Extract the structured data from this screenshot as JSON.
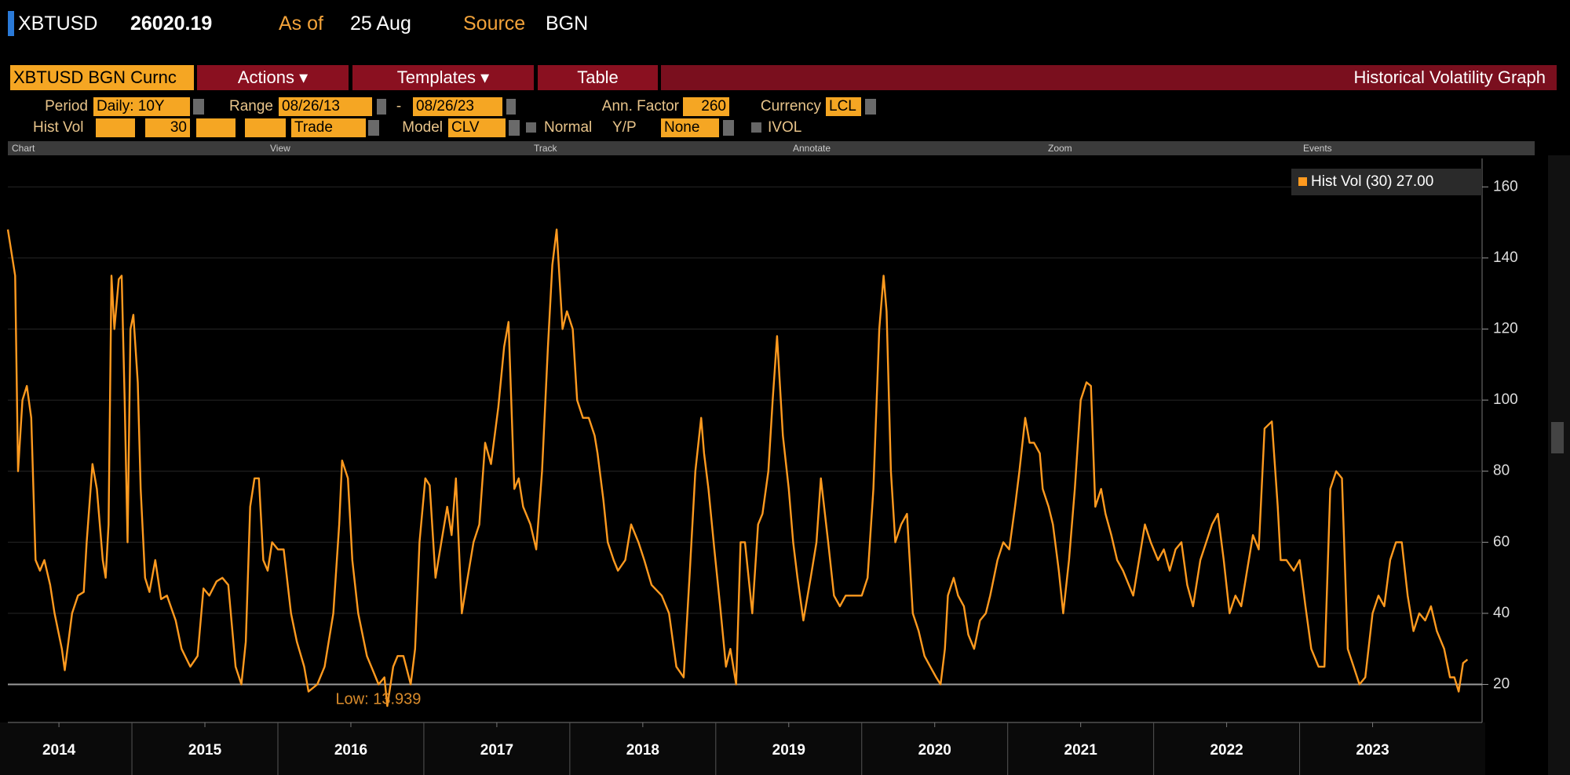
{
  "header": {
    "ticker": "XBTUSD",
    "price": "26020.19",
    "as_of_label": "As of",
    "as_of": "25 Aug",
    "source_label": "Source",
    "source": "BGN"
  },
  "menu": {
    "security": "XBTUSD BGN Curnc",
    "items": [
      "Actions ▾",
      "Templates ▾",
      "Table"
    ],
    "title": "Historical Volatility Graph"
  },
  "params": {
    "period_label": "Period",
    "period": "Daily: 10Y",
    "range_label": "Range",
    "range_start": "08/26/13",
    "range_sep": "-",
    "range_end": "08/26/23",
    "ann_factor_label": "Ann. Factor",
    "ann_factor": "260",
    "currency_label": "Currency",
    "currency": "LCL",
    "hist_vol_label": "Hist Vol",
    "hist_vol_window": "30",
    "price_type": "Trade",
    "model_label": "Model",
    "model": "CLV",
    "normal_label": "Normal",
    "yp_label": "Y/P",
    "yp": "None",
    "ivol_label": "IVOL"
  },
  "toolbar": [
    "Chart",
    "View",
    "Track",
    "Annotate",
    "Zoom",
    "Events"
  ],
  "chart_data": {
    "type": "line",
    "x": [
      2013.65,
      2013.7,
      2013.72,
      2013.75,
      2013.78,
      2013.81,
      2013.84,
      2013.87,
      2013.9,
      2013.94,
      2013.97,
      2014.02,
      2014.04,
      2014.09,
      2014.13,
      2014.17,
      2014.19,
      2014.23,
      2014.26,
      2014.3,
      2014.32,
      2014.34,
      2014.36,
      2014.38,
      2014.41,
      2014.43,
      2014.45,
      2014.47,
      2014.49,
      2014.51,
      2014.54,
      2014.56,
      2014.59,
      2014.62,
      2014.66,
      2014.7,
      2014.74,
      2014.8,
      2014.84,
      2014.9,
      2014.95,
      2014.99,
      2015.03,
      2015.08,
      2015.12,
      2015.16,
      2015.21,
      2015.25,
      2015.28,
      2015.31,
      2015.34,
      2015.37,
      2015.4,
      2015.43,
      2015.46,
      2015.5,
      2015.54,
      2015.59,
      2015.63,
      2015.68,
      2015.71,
      2015.77,
      2015.82,
      2015.88,
      2015.92,
      2015.94,
      2015.98,
      2016.01,
      2016.05,
      2016.11,
      2016.15,
      2016.19,
      2016.23,
      2016.25,
      2016.29,
      2016.32,
      2016.36,
      2016.41,
      2016.44,
      2016.47,
      2016.51,
      2016.54,
      2016.58,
      2016.62,
      2016.66,
      2016.69,
      2016.72,
      2016.76,
      2016.8,
      2016.84,
      2016.88,
      2016.92,
      2016.96,
      2017.01,
      2017.05,
      2017.08,
      2017.12,
      2017.15,
      2017.18,
      2017.23,
      2017.27,
      2017.31,
      2017.35,
      2017.38,
      2017.41,
      2017.45,
      2017.48,
      2017.52,
      2017.55,
      2017.59,
      2017.63,
      2017.67,
      2017.69,
      2017.73,
      2017.76,
      2017.8,
      2017.83,
      2017.88,
      2017.92,
      2017.97,
      2018.01,
      2018.06,
      2018.13,
      2018.18,
      2018.23,
      2018.28,
      2018.32,
      2018.36,
      2018.4,
      2018.42,
      2018.45,
      2018.49,
      2018.53,
      2018.57,
      2018.6,
      2018.64,
      2018.67,
      2018.7,
      2018.75,
      2018.79,
      2018.82,
      2018.86,
      2018.89,
      2018.92,
      2018.96,
      2019.0,
      2019.03,
      2019.06,
      2019.1,
      2019.15,
      2019.19,
      2019.22,
      2019.27,
      2019.31,
      2019.35,
      2019.39,
      2019.44,
      2019.5,
      2019.54,
      2019.58,
      2019.62,
      2019.65,
      2019.67,
      2019.7,
      2019.73,
      2019.77,
      2019.81,
      2019.85,
      2019.89,
      2019.93,
      2019.97,
      2020.01,
      2020.04,
      2020.07,
      2020.09,
      2020.13,
      2020.16,
      2020.2,
      2020.23,
      2020.27,
      2020.31,
      2020.35,
      2020.38,
      2020.43,
      2020.47,
      2020.51,
      2020.55,
      2020.58,
      2020.62,
      2020.65,
      2020.68,
      2020.72,
      2020.74,
      2020.78,
      2020.81,
      2020.85,
      2020.88,
      2020.92,
      2020.96,
      2021.0,
      2021.04,
      2021.07,
      2021.1,
      2021.14,
      2021.17,
      2021.21,
      2021.25,
      2021.29,
      2021.33,
      2021.36,
      2021.4,
      2021.44,
      2021.48,
      2021.53,
      2021.57,
      2021.61,
      2021.65,
      2021.69,
      2021.73,
      2021.77,
      2021.82,
      2021.86,
      2021.9,
      2021.94,
      2021.98,
      2022.02,
      2022.06,
      2022.1,
      2022.14,
      2022.18,
      2022.22,
      2022.26,
      2022.31,
      2022.35,
      2022.37,
      2022.41,
      2022.46,
      2022.5,
      2022.54,
      2022.58,
      2022.63,
      2022.67,
      2022.71,
      2022.75,
      2022.79,
      2022.83,
      2022.87,
      2022.91,
      2022.95,
      2023.0,
      2023.04,
      2023.08,
      2023.12,
      2023.16,
      2023.2,
      2023.24,
      2023.28,
      2023.32,
      2023.36,
      2023.4,
      2023.44,
      2023.49,
      2023.53,
      2023.56,
      2023.59,
      2023.62,
      2023.65
    ],
    "series": [
      {
        "name": "Hist Vol (30) 27.00",
        "color": "#ff9a1f",
        "values": [
          148,
          135,
          80,
          100,
          104,
          95,
          55,
          52,
          55,
          48,
          40,
          30,
          24,
          40,
          45,
          46,
          60,
          82,
          75,
          55,
          50,
          65,
          135,
          120,
          134,
          135,
          100,
          60,
          120,
          124,
          105,
          75,
          50,
          46,
          55,
          44,
          45,
          38,
          30,
          25,
          28,
          47,
          45,
          49,
          50,
          48,
          25,
          20,
          32,
          70,
          78,
          78,
          55,
          52,
          60,
          58,
          58,
          40,
          32,
          25,
          18,
          20,
          25,
          40,
          65,
          83,
          78,
          55,
          40,
          28,
          24,
          20,
          22,
          13.939,
          25,
          28,
          28,
          20,
          30,
          60,
          78,
          76,
          50,
          60,
          70,
          62,
          78,
          40,
          50,
          60,
          65,
          88,
          82,
          98,
          115,
          122,
          75,
          78,
          70,
          65,
          58,
          80,
          115,
          138,
          148,
          120,
          125,
          120,
          100,
          95,
          95,
          90,
          85,
          72,
          60,
          55,
          52,
          55,
          65,
          60,
          55,
          48,
          45,
          40,
          25,
          22,
          50,
          80,
          95,
          85,
          75,
          58,
          42,
          25,
          30,
          20,
          60,
          60,
          40,
          65,
          68,
          80,
          100,
          118,
          90,
          75,
          60,
          50,
          38,
          50,
          60,
          78,
          60,
          45,
          42,
          45,
          45,
          45,
          50,
          75,
          120,
          135,
          125,
          80,
          60,
          65,
          68,
          40,
          35,
          28,
          25,
          22,
          20,
          30,
          45,
          50,
          45,
          42,
          34,
          30,
          38,
          40,
          45,
          55,
          60,
          58,
          70,
          80,
          95,
          88,
          88,
          85,
          75,
          70,
          65,
          52,
          40,
          55,
          75,
          100,
          105,
          104,
          70,
          75,
          68,
          62,
          55,
          52,
          48,
          45,
          55,
          65,
          60,
          55,
          58,
          52,
          58,
          60,
          48,
          42,
          55,
          60,
          65,
          68,
          55,
          40,
          45,
          42,
          52,
          62,
          58,
          92,
          94,
          70,
          55,
          55,
          52,
          55,
          42,
          30,
          25,
          25,
          75,
          80,
          78,
          30,
          25,
          20,
          22,
          40,
          45,
          42,
          55,
          60,
          60,
          45,
          35,
          40,
          38,
          42,
          35,
          30,
          22,
          22,
          18,
          26,
          27
        ]
      }
    ],
    "annotation": "Low: 13.939",
    "reference_line": 20,
    "xlim": [
      2013.65,
      2023.75
    ],
    "xticks": [
      2014,
      2015,
      2016,
      2017,
      2018,
      2019,
      2020,
      2021,
      2022,
      2023
    ],
    "ylim": [
      9.3,
      168
    ],
    "yticks": [
      20,
      40,
      60,
      80,
      100,
      120,
      140,
      160
    ],
    "grid": true
  }
}
